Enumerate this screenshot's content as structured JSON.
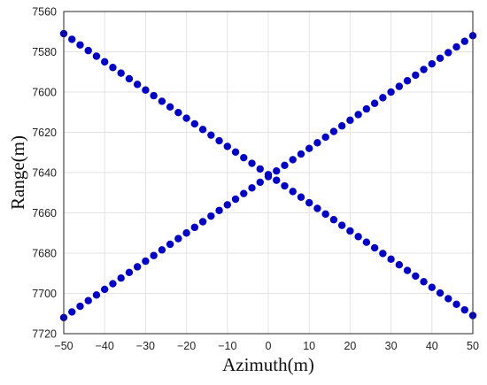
{
  "chart_data": {
    "type": "scatter",
    "title": "",
    "xlabel": "Azimuth(m)",
    "ylabel": "Range(m)",
    "xlim": [
      -50,
      50
    ],
    "ylim": [
      7560,
      7720
    ],
    "y_axis_reversed": true,
    "grid": true,
    "legend": "none",
    "x_ticks": [
      -50,
      -40,
      -30,
      -20,
      -10,
      0,
      10,
      20,
      30,
      40,
      50
    ],
    "y_ticks": [
      7560,
      7580,
      7600,
      7620,
      7640,
      7660,
      7680,
      7700,
      7720
    ],
    "marker_color": "#0000cc",
    "series": [
      {
        "x": [
          -50,
          -48,
          -46,
          -44,
          -42,
          -40,
          -38,
          -36,
          -34,
          -32,
          -30,
          -28,
          -26,
          -24,
          -22,
          -20,
          -18,
          -16,
          -14,
          -12,
          -10,
          -8,
          -6,
          -4,
          -2,
          0,
          2,
          4,
          6,
          8,
          10,
          12,
          14,
          16,
          18,
          20,
          22,
          24,
          26,
          28,
          30,
          32,
          34,
          36,
          38,
          40,
          42,
          44,
          46,
          48,
          50
        ],
        "y": [
          7571,
          7573.8,
          7576.6,
          7579.4,
          7582.2,
          7585,
          7587.8,
          7590.6,
          7593.4,
          7596.2,
          7599,
          7601.8,
          7604.6,
          7607.4,
          7610.2,
          7613,
          7615.8,
          7618.6,
          7621.4,
          7624.2,
          7627,
          7629.8,
          7632.6,
          7635.4,
          7638.2,
          7641,
          7643.8,
          7646.6,
          7649.4,
          7652.2,
          7655,
          7657.8,
          7660.6,
          7663.4,
          7666.2,
          7669,
          7671.8,
          7674.6,
          7677.4,
          7680.2,
          7683,
          7685.8,
          7688.6,
          7691.4,
          7694.2,
          7697,
          7699.8,
          7702.6,
          7705.4,
          7708.2,
          7711
        ]
      },
      {
        "x": [
          -50,
          -48,
          -46,
          -44,
          -42,
          -40,
          -38,
          -36,
          -34,
          -32,
          -30,
          -28,
          -26,
          -24,
          -22,
          -20,
          -18,
          -16,
          -14,
          -12,
          -10,
          -8,
          -6,
          -4,
          -2,
          0,
          2,
          4,
          6,
          8,
          10,
          12,
          14,
          16,
          18,
          20,
          22,
          24,
          26,
          28,
          30,
          32,
          34,
          36,
          38,
          40,
          42,
          44,
          46,
          48,
          50
        ],
        "y": [
          7712,
          7709.2,
          7706.4,
          7703.6,
          7700.8,
          7698,
          7695.2,
          7692.4,
          7689.6,
          7686.8,
          7684,
          7681.2,
          7678.4,
          7675.6,
          7672.8,
          7670,
          7667.2,
          7664.4,
          7661.6,
          7658.8,
          7656,
          7653.2,
          7650.4,
          7647.6,
          7644.8,
          7642,
          7639.2,
          7636.4,
          7633.6,
          7630.8,
          7628,
          7625.2,
          7622.4,
          7619.6,
          7616.8,
          7614,
          7611.2,
          7608.4,
          7605.6,
          7602.8,
          7600,
          7597.2,
          7594.4,
          7591.6,
          7588.8,
          7586,
          7583.2,
          7580.4,
          7577.6,
          7574.8,
          7572
        ]
      }
    ]
  }
}
